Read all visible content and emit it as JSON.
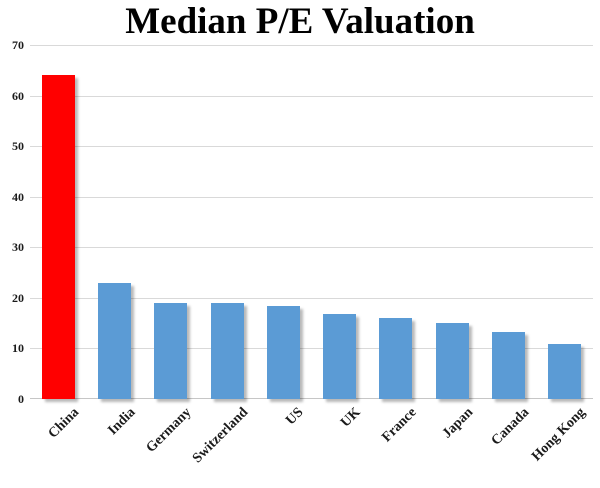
{
  "chart_data": {
    "type": "bar",
    "title": "Median P/E Valuation",
    "categories": [
      "China",
      "India",
      "Germany",
      "Switzerland",
      "US",
      "UK",
      "France",
      "Japan",
      "Canada",
      "Hong Kong"
    ],
    "values": [
      64,
      23,
      19,
      19,
      18.4,
      16.8,
      16,
      15,
      13.3,
      10.8
    ],
    "highlight_category": "China",
    "colors": {
      "highlight_bar": "#FF0000",
      "bar": "#5B9BD5",
      "gridline": "#D9D9D9",
      "axis_line": "#C6C6C6",
      "text": "#000000"
    },
    "xlabel": "",
    "ylabel": "",
    "ylim": [
      0,
      70
    ],
    "y_ticks": [
      0,
      10,
      20,
      30,
      40,
      50,
      60,
      70
    ],
    "grid": "horizontal",
    "legend": "none",
    "x_tick_rotation_deg": 45
  }
}
